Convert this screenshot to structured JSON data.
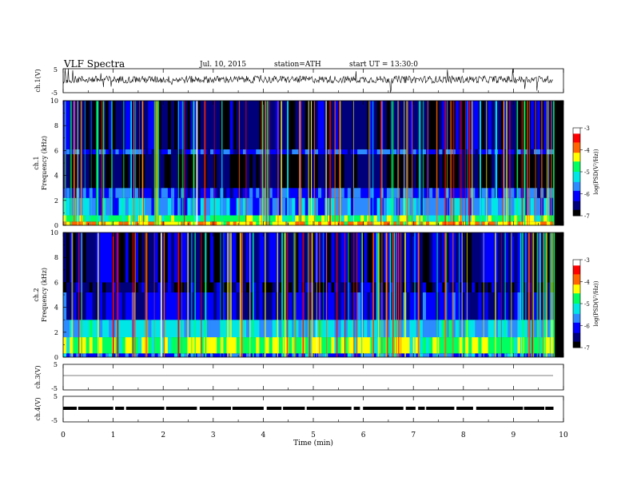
{
  "header": {
    "title": "VLF Spectra",
    "date": "Jul. 10, 2015",
    "station": "station=ATH",
    "start": "start UT = 13:30:0"
  },
  "colorbar": {
    "label": "log(PSD(V²/Hz))",
    "ticks": [
      "-3",
      "-4",
      "-5",
      "-6",
      "-7"
    ]
  },
  "colors": {
    "spectrogram_background": "#000000",
    "colormap": [
      "#000000",
      "#00007a",
      "#0000ff",
      "#2c8cff",
      "#00e6e6",
      "#00ff60",
      "#ffff00",
      "#ff6400",
      "#ff0000",
      "#ffffff"
    ]
  },
  "chart_data": [
    {
      "type": "line",
      "name_label": "ch.1(V)",
      "ylabel": "ch.1(V)",
      "ylim": [
        -5,
        5
      ],
      "yticks": [
        "5",
        "-5"
      ],
      "description_values": {
        "baseline": 0.5,
        "noise_amplitude": 1.5
      }
    },
    {
      "type": "heatmap",
      "ylabel_channel": "ch.1",
      "ylabel": "Frequency (kHz)",
      "ylim": [
        0,
        10
      ],
      "yticks": [
        "0",
        "2",
        "4",
        "6",
        "8",
        "10"
      ],
      "xlim": [
        0,
        10
      ],
      "data_end_min": 9.8,
      "bands": [
        {
          "from_khz": 0.0,
          "to_khz": 0.3,
          "log_psd": -4.2
        },
        {
          "from_khz": 0.3,
          "to_khz": 0.8,
          "log_psd": -4.8
        },
        {
          "from_khz": 0.8,
          "to_khz": 2.2,
          "log_psd": -5.6
        },
        {
          "from_khz": 2.2,
          "to_khz": 3.0,
          "log_psd": -6.0
        },
        {
          "from_khz": 3.0,
          "to_khz": 5.7,
          "log_psd": -6.8
        },
        {
          "from_khz": 5.7,
          "to_khz": 6.1,
          "log_psd": -6.0
        },
        {
          "from_khz": 6.1,
          "to_khz": 10.0,
          "log_psd": -6.6
        }
      ]
    },
    {
      "type": "heatmap",
      "ylabel_channel": "ch.2",
      "ylabel": "Frequency (kHz)",
      "ylim": [
        0,
        10
      ],
      "yticks": [
        "0",
        "2",
        "4",
        "6",
        "8",
        "10"
      ],
      "xlim": [
        0,
        10
      ],
      "data_end_min": 9.8,
      "bands": [
        {
          "from_khz": 0.0,
          "to_khz": 0.3,
          "log_psd": -5.8
        },
        {
          "from_khz": 0.3,
          "to_khz": 1.6,
          "log_psd": -4.6
        },
        {
          "from_khz": 1.6,
          "to_khz": 3.0,
          "log_psd": -5.4
        },
        {
          "from_khz": 3.0,
          "to_khz": 5.2,
          "log_psd": -6.3
        },
        {
          "from_khz": 5.2,
          "to_khz": 6.0,
          "log_psd": -6.6
        },
        {
          "from_khz": 6.0,
          "to_khz": 10.0,
          "log_psd": -6.5
        }
      ]
    },
    {
      "type": "line",
      "ylabel": "ch.3(V)",
      "ylim": [
        -5,
        5
      ],
      "yticks": [
        "5",
        "-5"
      ],
      "description_values": {
        "baseline": -1.0
      }
    },
    {
      "type": "line",
      "ylabel": "ch.4(V)",
      "ylim": [
        -5,
        5
      ],
      "yticks": [
        "5",
        "-5"
      ],
      "description_values": {
        "baseline": -0.5
      }
    }
  ],
  "xaxis": {
    "label": "Time (min)",
    "ticks": [
      "0",
      "1",
      "2",
      "3",
      "4",
      "5",
      "6",
      "7",
      "8",
      "9",
      "10"
    ]
  }
}
